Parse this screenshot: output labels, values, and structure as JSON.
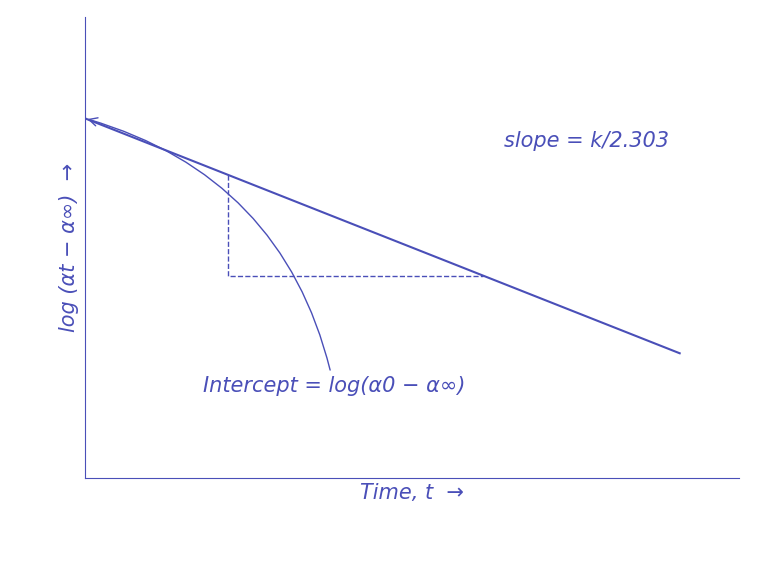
{
  "chart_data": {
    "type": "line",
    "x_label": "Time, t  →",
    "y_label": "log (αt − α∞)  →",
    "x": [
      0,
      10
    ],
    "values": [
      7.8,
      2.7
    ],
    "xlim": [
      0,
      11
    ],
    "ylim": [
      0,
      10
    ],
    "xticks": [],
    "yticks": [],
    "tick_labels": false,
    "grid": false,
    "color": "#4a4fb8",
    "annotations": {
      "slope": "slope = k/2.303",
      "intercept": "Intercept = log(α0 − α∞)"
    }
  }
}
